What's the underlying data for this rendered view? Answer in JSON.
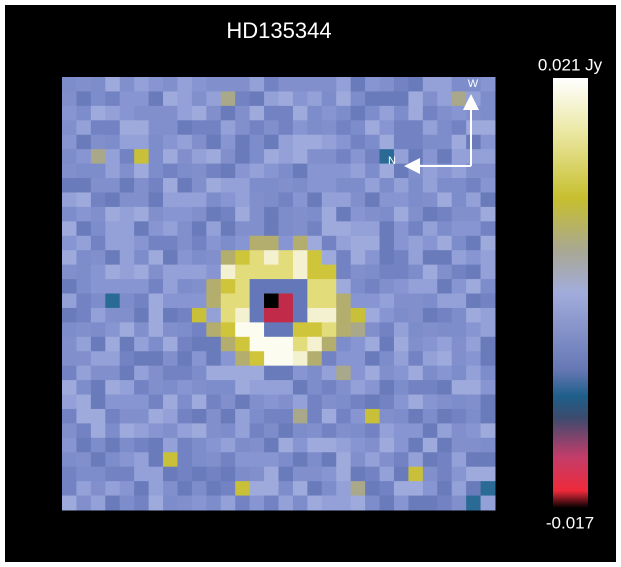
{
  "title": "HD135344",
  "colorbar": {
    "top_label": "0.021 Jy",
    "bottom_label": "-0.017"
  },
  "compass": {
    "west": "W",
    "north": "N"
  }
}
